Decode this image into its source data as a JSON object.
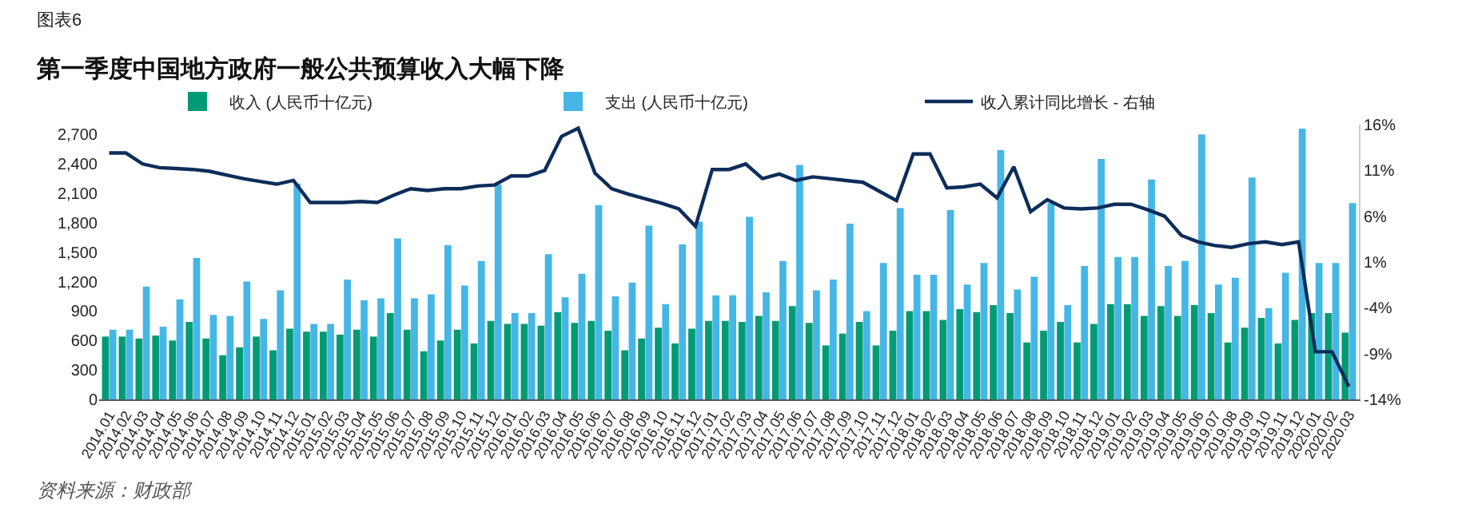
{
  "chart_data": {
    "type": "bar",
    "subtitle": "图表6",
    "title": "第一季度中国地方政府一般公共预算收入大幅下降",
    "annotations": [
      "资料来源：财政部"
    ],
    "categories": [
      "2014.01",
      "2014.02",
      "2014.03",
      "2014.04",
      "2014.05",
      "2014.06",
      "2014.07",
      "2014.08",
      "2014.09",
      "2014.10",
      "2014.11",
      "2014.12",
      "2015.01",
      "2015.02",
      "2015.03",
      "2015.04",
      "2015.05",
      "2015.06",
      "2015.07",
      "2015.08",
      "2015.09",
      "2015.10",
      "2015.11",
      "2015.12",
      "2016.01",
      "2016.02",
      "2016.03",
      "2016.04",
      "2016.05",
      "2016.06",
      "2016.07",
      "2016.08",
      "2016.09",
      "2016.10",
      "2016.11",
      "2016.12",
      "2017.01",
      "2017.02",
      "2017.03",
      "2017.04",
      "2017.05",
      "2017.06",
      "2017.07",
      "2017.08",
      "2017.09",
      "2017.10",
      "2017.11",
      "2017.12",
      "2018.01",
      "2018.02",
      "2018.03",
      "2018.04",
      "2018.05",
      "2018.06",
      "2018.07",
      "2018.08",
      "2018.09",
      "2018.10",
      "2018.11",
      "2018.12",
      "2019.01",
      "2019.02",
      "2019.03",
      "2019.04",
      "2019.05",
      "2019.06",
      "2019.07",
      "2019.08",
      "2019.09",
      "2019.10",
      "2019.11",
      "2019.12",
      "2020.01",
      "2020.02",
      "2020.03"
    ],
    "series": [
      {
        "name": "收入 (人民币十亿元)",
        "color": "#009a74",
        "values": [
          640,
          640,
          620,
          650,
          600,
          790,
          620,
          450,
          530,
          640,
          500,
          720,
          690,
          690,
          660,
          710,
          640,
          880,
          710,
          490,
          600,
          710,
          570,
          800,
          770,
          770,
          750,
          890,
          780,
          800,
          700,
          500,
          620,
          730,
          570,
          720,
          800,
          800,
          790,
          850,
          800,
          950,
          780,
          550,
          670,
          790,
          550,
          700,
          900,
          900,
          810,
          920,
          890,
          960,
          880,
          580,
          700,
          790,
          580,
          770,
          970,
          970,
          850,
          950,
          850,
          960,
          880,
          580,
          730,
          830,
          570,
          810,
          880,
          880,
          680
        ]
      },
      {
        "name": "支出 (人民币十亿元)",
        "color": "#45b6e6",
        "values": [
          710,
          710,
          1150,
          740,
          1020,
          1440,
          860,
          850,
          1200,
          820,
          1110,
          2200,
          770,
          770,
          1220,
          1010,
          1030,
          1640,
          1030,
          1070,
          1570,
          1160,
          1410,
          2190,
          880,
          880,
          1480,
          1040,
          1280,
          1980,
          1050,
          1190,
          1770,
          970,
          1580,
          1810,
          1060,
          1060,
          1860,
          1090,
          1410,
          2390,
          1110,
          1220,
          1790,
          900,
          1390,
          1950,
          1270,
          1270,
          1930,
          1170,
          1390,
          2540,
          1120,
          1250,
          2000,
          960,
          1360,
          2450,
          1450,
          1450,
          2240,
          1360,
          1410,
          2700,
          1170,
          1240,
          2260,
          930,
          1290,
          2760,
          1390,
          1390,
          2000
        ]
      },
      {
        "name": "收入累计同比增长 - 右轴",
        "type": "line",
        "axis": "y2",
        "color": "#0d2d5a",
        "values": [
          12.9,
          12.9,
          11.7,
          11.3,
          11.2,
          11.1,
          10.9,
          10.5,
          10.1,
          9.8,
          9.5,
          9.9,
          7.5,
          7.5,
          7.5,
          7.6,
          7.5,
          8.3,
          9.0,
          8.8,
          9.0,
          9.0,
          9.3,
          9.4,
          10.4,
          10.4,
          11.0,
          14.7,
          15.6,
          10.7,
          9.0,
          8.4,
          7.9,
          7.4,
          6.8,
          4.9,
          11.1,
          11.1,
          11.7,
          10.1,
          10.6,
          9.9,
          10.3,
          10.1,
          9.9,
          9.7,
          8.7,
          7.7,
          12.8,
          12.8,
          9.1,
          9.2,
          9.5,
          8.0,
          11.4,
          6.5,
          7.8,
          6.9,
          6.8,
          6.9,
          7.3,
          7.3,
          6.7,
          6.0,
          3.9,
          3.2,
          2.8,
          2.6,
          3.0,
          3.2,
          2.9,
          3.2,
          -8.8,
          -8.8,
          -12.6
        ]
      }
    ],
    "ylim": [
      0,
      2800
    ],
    "yticks": [
      0,
      {
        "value": 300,
        "label": "300"
      },
      {
        "value": 600,
        "label": "600"
      },
      {
        "value": 900,
        "label": "900"
      },
      {
        "value": 1200,
        "label": "1,200"
      },
      {
        "value": 1500,
        "label": "1,500"
      },
      {
        "value": 1800,
        "label": "1,800"
      },
      {
        "value": 2100,
        "label": "2,100"
      },
      {
        "value": 2400,
        "label": "2,400"
      },
      {
        "value": 2700,
        "label": "2,700"
      }
    ],
    "y2lim": [
      -14,
      16
    ],
    "y2ticks": [
      {
        "value": -14,
        "label": "-14%"
      },
      {
        "value": -9,
        "label": "-9%"
      },
      {
        "value": -4,
        "label": "-4%"
      },
      {
        "value": 1,
        "label": "1%"
      },
      {
        "value": 6,
        "label": "6%"
      },
      {
        "value": 11,
        "label": "11%"
      },
      {
        "value": 16,
        "label": "16%"
      }
    ],
    "legend": "top",
    "marker": "none",
    "line_style": "solid"
  }
}
